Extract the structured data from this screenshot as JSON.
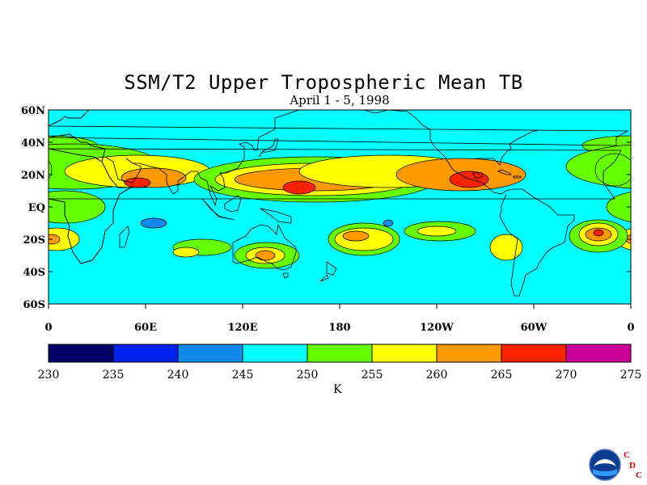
{
  "chart_data": {
    "type": "heatmap",
    "title": "SSM/T2 Upper Tropospheric Mean TB",
    "subtitle": "April 1 - 5, 1998",
    "lat_labels": [
      "60N",
      "40N",
      "20N",
      "EQ",
      "20S",
      "40S",
      "60S"
    ],
    "lon_labels": [
      "0",
      "60E",
      "120E",
      "180",
      "120W",
      "60W",
      "0"
    ],
    "lat_range": [
      -60,
      60
    ],
    "lon_range": [
      0,
      360
    ],
    "colorbar": {
      "units": "K",
      "levels": [
        230,
        235,
        240,
        245,
        250,
        255,
        260,
        265,
        270,
        275
      ],
      "level_labels": [
        "230",
        "235",
        "240",
        "245",
        "250",
        "255",
        "260",
        "265",
        "270",
        "275"
      ],
      "colors": [
        "#000066",
        "#0022ee",
        "#118aee",
        "#00ffff",
        "#66ff00",
        "#ffff00",
        "#ff9900",
        "#ff2200",
        "#cc0099"
      ]
    },
    "background_value": 245,
    "features": [
      {
        "lon": 0,
        "lat": 38,
        "w": 30,
        "h": 6,
        "value": 250
      },
      {
        "lon": 15,
        "lat": 25,
        "w": 55,
        "h": 14,
        "value": 250
      },
      {
        "lon": 55,
        "lat": 22,
        "w": 45,
        "h": 10,
        "value": 255
      },
      {
        "lon": 65,
        "lat": 18,
        "w": 20,
        "h": 6,
        "value": 260
      },
      {
        "lon": 55,
        "lat": 15,
        "w": 8,
        "h": 3,
        "value": 265
      },
      {
        "lon": 165,
        "lat": 17,
        "w": 75,
        "h": 14,
        "value": 250
      },
      {
        "lon": 165,
        "lat": 17,
        "w": 62,
        "h": 10,
        "value": 255
      },
      {
        "lon": 165,
        "lat": 17,
        "w": 50,
        "h": 7,
        "value": 260
      },
      {
        "lon": 155,
        "lat": 12,
        "w": 10,
        "h": 4,
        "value": 265
      },
      {
        "lon": 210,
        "lat": 22,
        "w": 55,
        "h": 10,
        "value": 255
      },
      {
        "lon": 255,
        "lat": 20,
        "w": 40,
        "h": 10,
        "value": 260
      },
      {
        "lon": 260,
        "lat": 17,
        "w": 12,
        "h": 5,
        "value": 265
      },
      {
        "lon": 350,
        "lat": 23,
        "w": 12,
        "h": 10,
        "value": 250
      },
      {
        "lon": 10,
        "lat": 0,
        "w": 25,
        "h": 10,
        "value": 250
      },
      {
        "lon": 5,
        "lat": -20,
        "w": 14,
        "h": 7,
        "value": 255
      },
      {
        "lon": 2,
        "lat": -20,
        "w": 5,
        "h": 3,
        "value": 260
      },
      {
        "lon": 95,
        "lat": -25,
        "w": 18,
        "h": 5,
        "value": 250
      },
      {
        "lon": 85,
        "lat": -28,
        "w": 8,
        "h": 3,
        "value": 255
      },
      {
        "lon": 135,
        "lat": -30,
        "w": 20,
        "h": 8,
        "value": 250
      },
      {
        "lon": 134,
        "lat": -30,
        "w": 12,
        "h": 5,
        "value": 255
      },
      {
        "lon": 134,
        "lat": -30,
        "w": 6,
        "h": 3,
        "value": 260
      },
      {
        "lon": 195,
        "lat": -20,
        "w": 22,
        "h": 10,
        "value": 250
      },
      {
        "lon": 195,
        "lat": -20,
        "w": 18,
        "h": 7,
        "value": 255
      },
      {
        "lon": 190,
        "lat": -18,
        "w": 8,
        "h": 3,
        "value": 260
      },
      {
        "lon": 242,
        "lat": -15,
        "w": 22,
        "h": 6,
        "value": 250
      },
      {
        "lon": 240,
        "lat": -15,
        "w": 12,
        "h": 3,
        "value": 255
      },
      {
        "lon": 283,
        "lat": -25,
        "w": 10,
        "h": 8,
        "value": 255
      },
      {
        "lon": 340,
        "lat": -18,
        "w": 18,
        "h": 10,
        "value": 250
      },
      {
        "lon": 340,
        "lat": -17,
        "w": 12,
        "h": 7,
        "value": 255
      },
      {
        "lon": 340,
        "lat": -17,
        "w": 8,
        "h": 4,
        "value": 260
      },
      {
        "lon": 340,
        "lat": -16,
        "w": 3,
        "h": 2,
        "value": 265
      },
      {
        "lon": 65,
        "lat": -10,
        "w": 8,
        "h": 3,
        "value": 240
      },
      {
        "lon": 210,
        "lat": -10,
        "w": 3,
        "h": 2,
        "value": 240
      }
    ]
  },
  "logo": {
    "letters": [
      "C",
      "D",
      "C"
    ],
    "text_color": "#cc0000"
  }
}
